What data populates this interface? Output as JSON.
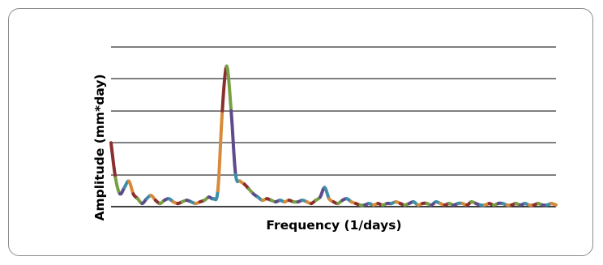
{
  "chart_data": {
    "type": "line",
    "title": "",
    "xlabel": "Frequency (1/days)",
    "ylabel": "Amplitude (mm*day)",
    "grid": true,
    "legend": "none",
    "ylim": [
      0,
      100
    ],
    "xlim": [
      0,
      100
    ],
    "x": [
      0,
      1,
      2,
      3,
      4,
      5,
      6,
      7,
      8,
      9,
      10,
      11,
      12,
      13,
      14,
      15,
      16,
      17,
      18,
      19,
      20,
      21,
      22,
      23,
      24,
      25,
      26,
      27,
      28,
      29,
      30,
      31,
      32,
      33,
      34,
      35,
      36,
      37,
      38,
      39,
      40,
      41,
      42,
      43,
      44,
      45,
      46,
      47,
      48,
      49,
      50,
      51,
      52,
      53,
      54,
      55,
      56,
      57,
      58,
      59,
      60,
      61,
      62,
      63,
      64,
      65,
      66,
      67,
      68,
      69,
      70,
      71,
      72,
      73,
      74,
      75,
      76,
      77,
      78,
      79,
      80,
      81,
      82,
      83,
      84,
      85,
      86,
      87,
      88,
      89,
      90,
      91,
      92,
      93,
      94,
      95,
      96,
      97,
      98,
      99,
      100
    ],
    "values": [
      40,
      18,
      8,
      12,
      16,
      8,
      5,
      2,
      5,
      7,
      4,
      2,
      4,
      5,
      3,
      2,
      3,
      4,
      3,
      2,
      3,
      4,
      6,
      5,
      10,
      60,
      88,
      60,
      20,
      16,
      14,
      11,
      8,
      6,
      4,
      5,
      4,
      3,
      4,
      3,
      4,
      3,
      3,
      4,
      3,
      2,
      4,
      6,
      12,
      5,
      3,
      2,
      4,
      5,
      3,
      2,
      1,
      1,
      2,
      1,
      2,
      1,
      2,
      2,
      3,
      2,
      1,
      2,
      3,
      1,
      2,
      2,
      1,
      3,
      2,
      1,
      2,
      1,
      2,
      2,
      1,
      3,
      2,
      1,
      1,
      2,
      1,
      2,
      2,
      1,
      1,
      2,
      1,
      2,
      1,
      1,
      2,
      1,
      1,
      2,
      1
    ],
    "series_colors": [
      "#8b2e2e",
      "#77a043",
      "#5e4a8c",
      "#3e8ea8",
      "#d88a3a"
    ]
  }
}
